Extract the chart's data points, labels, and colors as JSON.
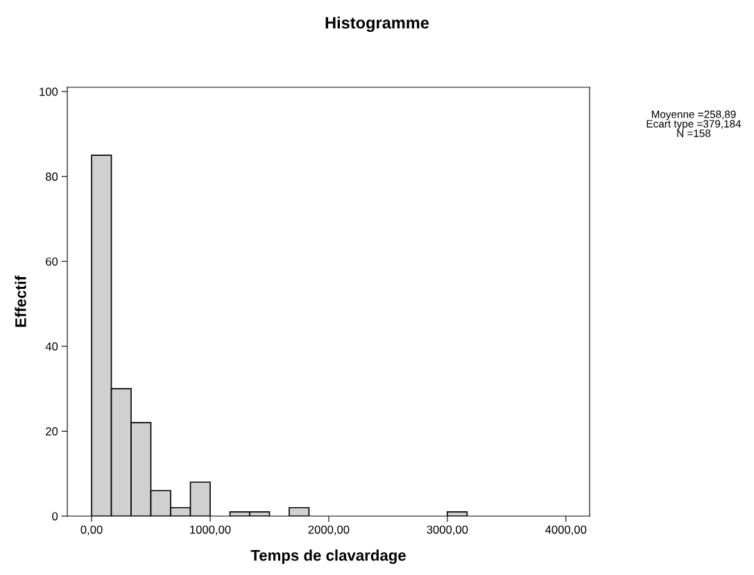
{
  "chart_data": {
    "type": "histogram",
    "title": "Histogramme",
    "xlabel": "Temps de clavardage",
    "ylabel": "Effectif",
    "bins": [
      0,
      166.67,
      333.33,
      500,
      666.67,
      833.33,
      1000,
      1166.67,
      1333.33,
      1500,
      1666.67,
      1833.33,
      2000,
      2166.67,
      2333.33,
      2500,
      2666.67,
      2833.33,
      3000,
      3166.67
    ],
    "values": [
      85,
      30,
      22,
      6,
      2,
      8,
      0,
      1,
      1,
      0,
      2,
      0,
      0,
      0,
      0,
      0,
      0,
      0,
      1
    ],
    "color": "#d0d0d0",
    "xlim": [
      -205,
      4200
    ],
    "ylim": [
      0,
      101
    ],
    "xticks": [
      {
        "value": 0,
        "label": "0,00"
      },
      {
        "value": 1000,
        "label": "1000,00"
      },
      {
        "value": 2000,
        "label": "2000,00"
      },
      {
        "value": 3000,
        "label": "3000,00"
      },
      {
        "value": 4000,
        "label": "4000,00"
      }
    ],
    "yticks": [
      0,
      20,
      40,
      60,
      80,
      100
    ],
    "grid": false,
    "annotations": [
      "Moyenne =258,89\nEcart type =379,184\nN =158"
    ]
  }
}
